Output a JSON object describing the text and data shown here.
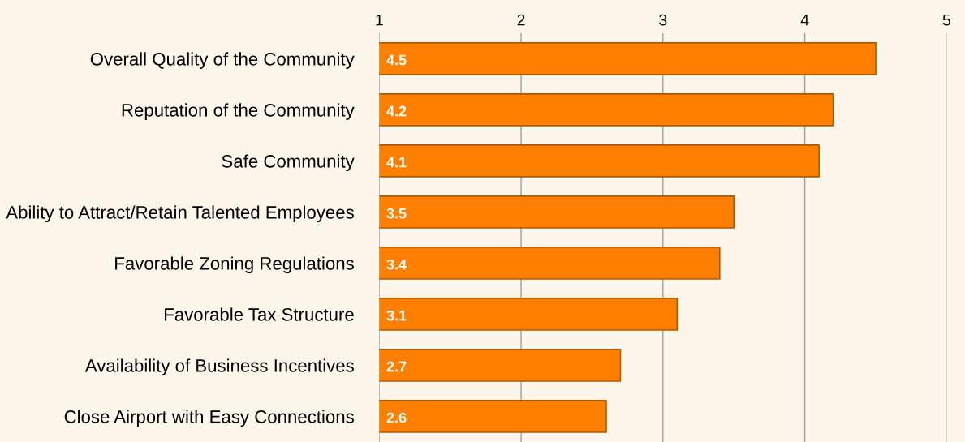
{
  "chart_data": {
    "type": "bar",
    "orientation": "horizontal",
    "categories": [
      "Overall Quality of the Community",
      "Reputation of the Community",
      "Safe Community",
      "Ability to Attract/Retain Talented Employees",
      "Favorable Zoning Regulations",
      "Favorable Tax Structure",
      "Availability of Business Incentives",
      "Close Airport with Easy Connections"
    ],
    "values": [
      4.5,
      4.2,
      4.1,
      3.5,
      3.4,
      3.1,
      2.7,
      2.6
    ],
    "color": "#ff7f00",
    "xlim": [
      1,
      5
    ],
    "xticks": [
      1,
      2,
      3,
      4,
      5
    ],
    "grid": "x",
    "data_labels": true
  }
}
